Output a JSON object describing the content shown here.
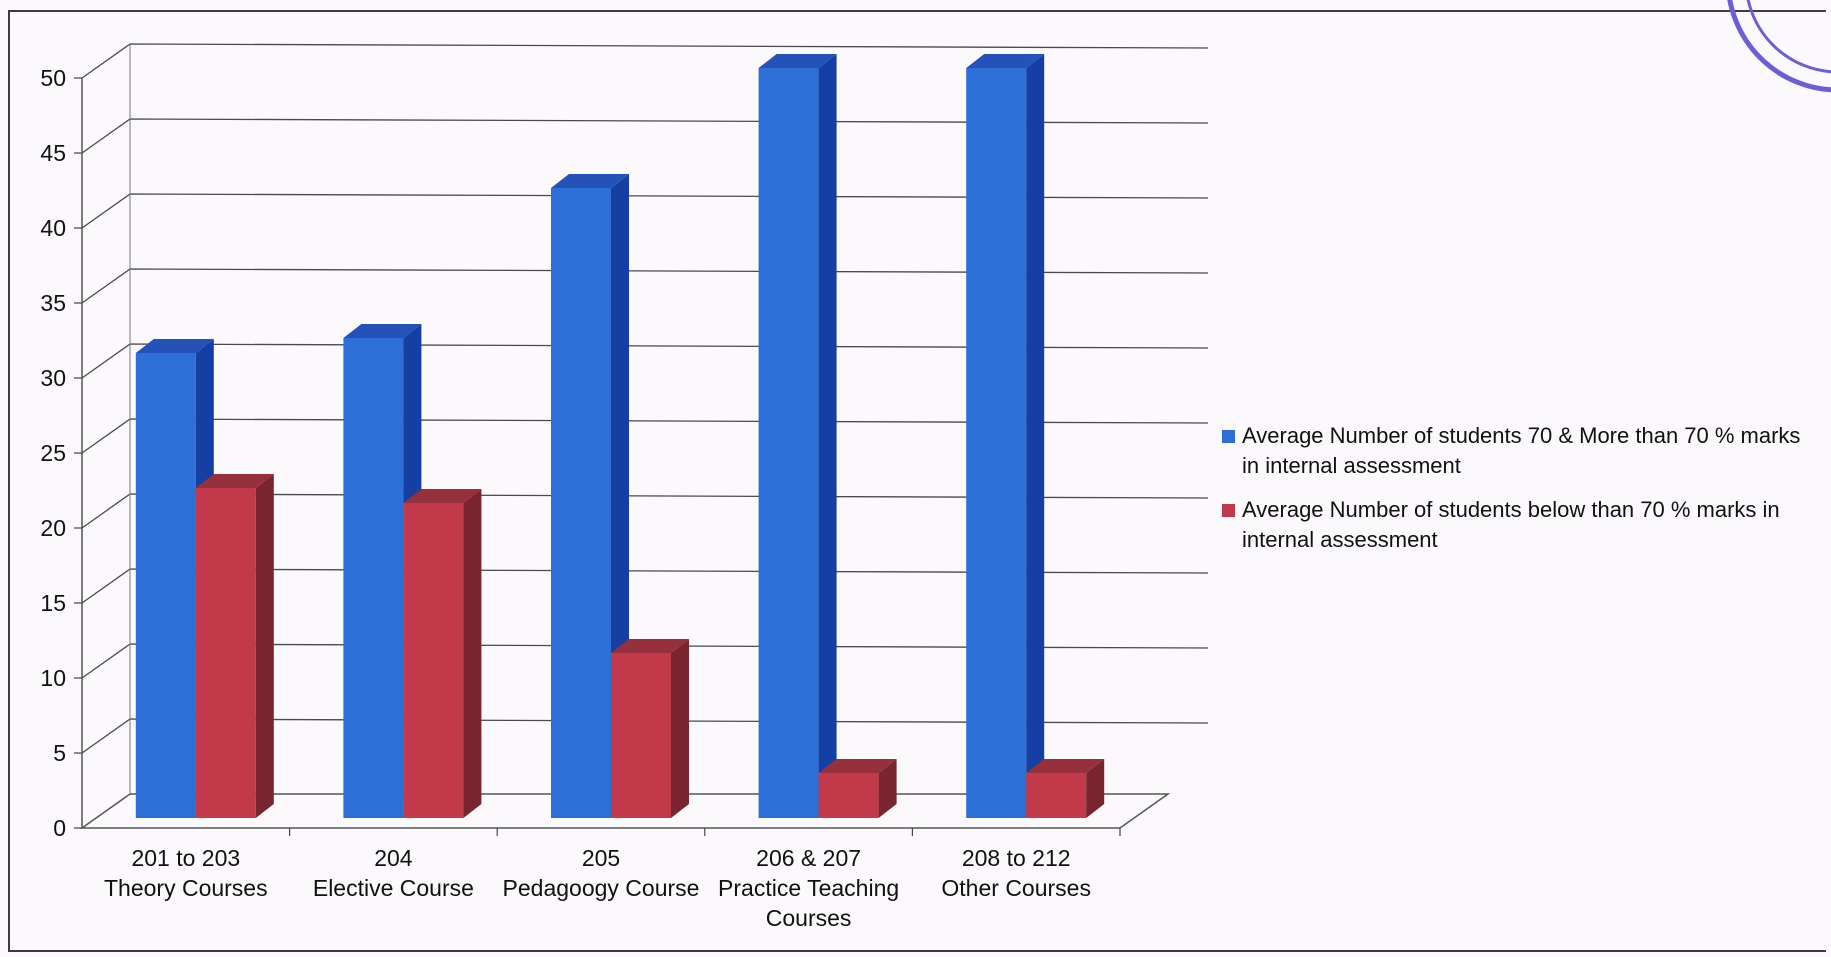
{
  "chart_data": {
    "type": "bar",
    "categories": [
      [
        "201 to 203",
        "Theory Courses"
      ],
      [
        "204",
        "Elective Course"
      ],
      [
        "205",
        "Pedagoogy Course"
      ],
      [
        "206 & 207",
        "Practice Teaching",
        "Courses"
      ],
      [
        "208 to 212",
        "Other Courses"
      ]
    ],
    "series": [
      {
        "name": [
          "Average Number of students 70 & More than 70 % marks",
          "in internal assessment"
        ],
        "values": [
          31,
          32,
          42,
          50,
          50
        ],
        "color": "#2c6fd6",
        "side_color": "#163fa3",
        "top_color": "#2452b8"
      },
      {
        "name": [
          "Average Number of students  below than 70 % marks in",
          "internal assessment"
        ],
        "values": [
          22,
          21,
          11,
          3,
          3
        ],
        "color": "#c23a4a",
        "side_color": "#7a2430",
        "top_color": "#96303d"
      }
    ],
    "yticks": [
      0,
      5,
      10,
      15,
      20,
      25,
      30,
      35,
      40,
      45,
      50
    ],
    "ylim": [
      0,
      50
    ],
    "grid": true,
    "legend_position": "right",
    "style": "3d-column"
  }
}
